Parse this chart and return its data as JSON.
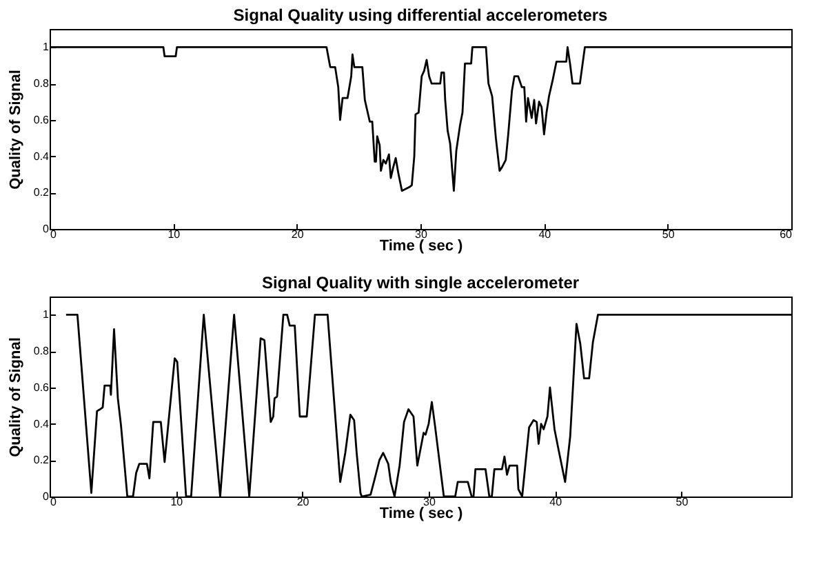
{
  "chart_data": [
    {
      "type": "line",
      "title": "Signal Quality using differential accelerometers",
      "xlabel": "Time ( sec )",
      "ylabel": "Quality of Signal",
      "color": "#000000",
      "xlim": [
        0,
        60
      ],
      "xticks": [
        0,
        10,
        20,
        30,
        40,
        50,
        60
      ],
      "ylim": [
        0,
        1.1
      ],
      "yticks": [
        0,
        0.2,
        0.4,
        0.6,
        0.8,
        1
      ],
      "x": [
        0,
        9.2,
        9.3,
        10.2,
        10.3,
        22.4,
        22.7,
        23.1,
        23.35,
        23.5,
        23.7,
        24.1,
        24.4,
        24.5,
        24.65,
        25.3,
        25.5,
        25.9,
        26.1,
        26.3,
        26.4,
        26.5,
        26.7,
        26.8,
        27.0,
        27.2,
        27.45,
        27.6,
        27.8,
        28.0,
        28.2,
        28.5,
        28.8,
        29.1,
        29.3,
        29.5,
        29.6,
        29.85,
        30.1,
        30.3,
        30.5,
        30.7,
        30.9,
        31.6,
        31.7,
        31.9,
        32.0,
        32.2,
        32.4,
        32.7,
        32.9,
        33.2,
        33.4,
        33.6,
        34.1,
        34.2,
        35.3,
        35.5,
        35.8,
        36.1,
        36.4,
        36.6,
        36.9,
        37.1,
        37.4,
        37.6,
        37.9,
        38.2,
        38.4,
        38.55,
        38.7,
        39.0,
        39.2,
        39.35,
        39.6,
        39.8,
        40.0,
        40.2,
        40.4,
        40.7,
        41.0,
        41.8,
        41.9,
        42.1,
        42.3,
        42.9,
        43.2,
        43.3,
        60
      ],
      "values": [
        1,
        1,
        0.95,
        0.95,
        1,
        1,
        0.89,
        0.89,
        0.78,
        0.6,
        0.72,
        0.72,
        0.84,
        0.96,
        0.89,
        0.89,
        0.71,
        0.59,
        0.59,
        0.37,
        0.37,
        0.51,
        0.46,
        0.32,
        0.38,
        0.36,
        0.41,
        0.28,
        0.34,
        0.39,
        0.31,
        0.21,
        0.22,
        0.23,
        0.24,
        0.4,
        0.63,
        0.64,
        0.84,
        0.87,
        0.93,
        0.84,
        0.8,
        0.8,
        0.86,
        0.86,
        0.71,
        0.54,
        0.47,
        0.21,
        0.43,
        0.57,
        0.64,
        0.91,
        0.91,
        1,
        1,
        0.8,
        0.73,
        0.5,
        0.32,
        0.34,
        0.38,
        0.52,
        0.76,
        0.84,
        0.84,
        0.78,
        0.78,
        0.59,
        0.72,
        0.61,
        0.71,
        0.58,
        0.7,
        0.67,
        0.52,
        0.64,
        0.73,
        0.82,
        0.92,
        0.92,
        1,
        0.91,
        0.8,
        0.8,
        0.95,
        1,
        1
      ]
    },
    {
      "type": "line",
      "title": "Signal Quality with single accelerometer",
      "xlabel": "Time ( sec )",
      "ylabel": "Quality of Signal",
      "color": "#000000",
      "xlim": [
        0,
        58.7
      ],
      "xticks": [
        0,
        10,
        20,
        30,
        40,
        50
      ],
      "ylim": [
        0,
        1.1
      ],
      "yticks": [
        0,
        0.2,
        0.4,
        0.6,
        0.8,
        1
      ],
      "x": [
        1.3,
        2.2,
        3.3,
        3.75,
        4.0,
        4.2,
        4.35,
        4.8,
        4.85,
        5.1,
        5.4,
        5.65,
        6.15,
        6.6,
        6.85,
        7.1,
        7.7,
        7.9,
        8.2,
        8.8,
        9.1,
        9.9,
        10.1,
        10.8,
        11.2,
        12.2,
        13.5,
        14.6,
        15.8,
        16.7,
        17.0,
        17.5,
        17.7,
        17.8,
        18.0,
        18.5,
        18.8,
        19.0,
        19.4,
        19.8,
        20.35,
        21.0,
        22.0,
        23.0,
        23.4,
        23.8,
        24.1,
        24.3,
        24.6,
        24.7,
        25.4,
        25.7,
        26.1,
        26.4,
        26.8,
        27.0,
        27.3,
        27.7,
        28.05,
        28.4,
        28.8,
        29.1,
        29.6,
        29.75,
        30.0,
        30.25,
        30.5,
        31.2,
        32.1,
        32.3,
        33.1,
        33.4,
        33.55,
        33.7,
        34.5,
        34.8,
        35.0,
        35.2,
        35.8,
        36.0,
        36.2,
        36.4,
        37.0,
        37.1,
        37.4,
        37.95,
        38.3,
        38.55,
        38.7,
        38.9,
        39.1,
        39.4,
        39.6,
        39.96,
        40.3,
        40.8,
        41.2,
        41.7,
        42.0,
        42.3,
        42.7,
        43.0,
        43.4,
        58.7
      ],
      "values": [
        1,
        1,
        0.02,
        0.47,
        0.48,
        0.49,
        0.61,
        0.61,
        0.56,
        0.92,
        0.54,
        0.39,
        0,
        0,
        0.13,
        0.18,
        0.18,
        0.1,
        0.41,
        0.41,
        0.19,
        0.76,
        0.74,
        0,
        0,
        1,
        0,
        1,
        0,
        0.87,
        0.86,
        0.41,
        0.44,
        0.54,
        0.55,
        1,
        1,
        0.94,
        0.94,
        0.44,
        0.44,
        1,
        1,
        0.08,
        0.24,
        0.45,
        0.42,
        0.24,
        0.02,
        0,
        0.01,
        0.09,
        0.2,
        0.24,
        0.18,
        0.08,
        0,
        0.17,
        0.41,
        0.48,
        0.44,
        0.17,
        0.35,
        0.34,
        0.4,
        0.52,
        0.39,
        0,
        0,
        0.08,
        0.08,
        0,
        0,
        0.15,
        0.15,
        0,
        0,
        0.15,
        0.15,
        0.22,
        0.12,
        0.17,
        0.17,
        0.04,
        0,
        0.38,
        0.42,
        0.41,
        0.29,
        0.4,
        0.37,
        0.44,
        0.6,
        0.37,
        0.25,
        0.08,
        0.33,
        0.95,
        0.84,
        0.65,
        0.65,
        0.85,
        1,
        1
      ]
    }
  ]
}
